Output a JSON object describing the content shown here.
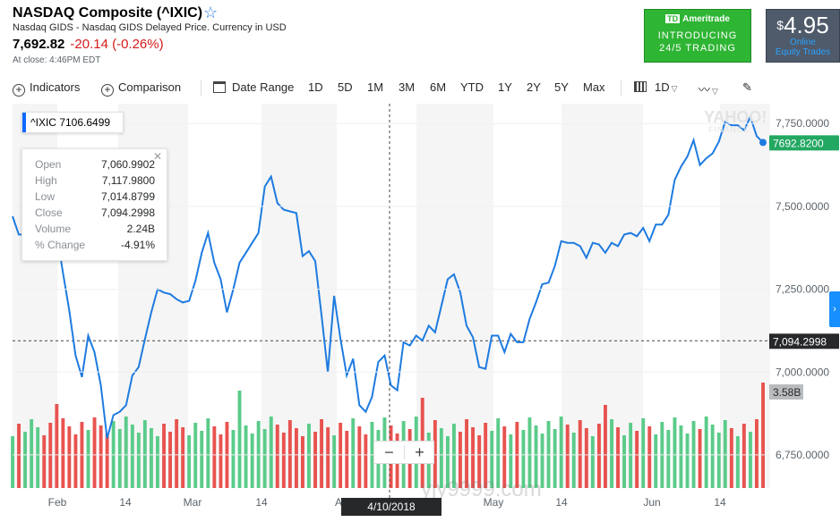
{
  "header": {
    "title": "NASDAQ Composite (^IXIC)",
    "subtitle": "Nasdaq GIDS - Nasdaq GIDS Delayed Price. Currency in USD",
    "price": "7,692.82",
    "change": "-20.14 (-0.26%)",
    "close_time": "At close: 4:46PM EDT"
  },
  "ads": {
    "td_logo": "Ameritrade",
    "td_line1": "INTRODUCING",
    "td_line2": "24/5 TRADING",
    "price_symbol": "$",
    "price_amount": "4.95",
    "price_sub1": "Online",
    "price_sub2": "Equity Trades"
  },
  "toolbar": {
    "indicators": "Indicators",
    "comparison": "Comparison",
    "date_range": "Date Range",
    "ranges": [
      "1D",
      "5D",
      "1M",
      "3M",
      "6M",
      "YTD",
      "1Y",
      "2Y",
      "5Y",
      "Max"
    ],
    "interval": "1D"
  },
  "tooltip": {
    "symbol": "^IXIC",
    "symbol_value": "7106.6499",
    "rows": [
      {
        "label": "Open",
        "value": "7,060.9902"
      },
      {
        "label": "High",
        "value": "7,117.9800"
      },
      {
        "label": "Low",
        "value": "7,014.8799"
      },
      {
        "label": "Close",
        "value": "7,094.2998"
      },
      {
        "label": "Volume",
        "value": "2.24B"
      },
      {
        "label": "% Change",
        "value": "-4.91%"
      }
    ]
  },
  "crosshair": {
    "date_label": "4/10/2018",
    "y_value": 7094.2998,
    "y_label": "7,094.2998"
  },
  "branding": {
    "yahoo": "YAHOO!",
    "finance": "FINANCE",
    "watermark": "yjy9999.com"
  },
  "colors": {
    "line": "#1e7be0",
    "current_price_bg": "#23a862",
    "volume_up": "#5bcb8a",
    "volume_down": "#e8534f",
    "crosshair_bg": "#26282a",
    "volume_label_bg": "#b9bcbf"
  },
  "chart_data": {
    "type": "line",
    "series": [
      {
        "values": [
          7470,
          7415,
          7415,
          7455,
          7505,
          7500,
          7460,
          7420,
          7300,
          7185,
          7050,
          6985,
          7110,
          7060,
          6960,
          6800,
          6870,
          6880,
          6900,
          6990,
          7015,
          7100,
          7180,
          7250,
          7240,
          7235,
          7220,
          7210,
          7215,
          7275,
          7360,
          7420,
          7330,
          7280,
          7180,
          7250,
          7330,
          7360,
          7390,
          7420,
          7560,
          7590,
          7510,
          7490,
          7485,
          7480,
          7350,
          7365,
          7335,
          7170,
          7000,
          7230,
          7100,
          6990,
          7040,
          6900,
          6880,
          6925,
          7030,
          7050,
          6960,
          6945,
          7090,
          7080,
          7110,
          7095,
          7140,
          7120,
          7200,
          7280,
          7295,
          7240,
          7140,
          7105,
          7015,
          7010,
          7110,
          7110,
          7060,
          7115,
          7090,
          7090,
          7160,
          7210,
          7265,
          7270,
          7320,
          7395,
          7390,
          7390,
          7380,
          7345,
          7390,
          7385,
          7360,
          7390,
          7380,
          7415,
          7420,
          7410,
          7435,
          7395,
          7445,
          7445,
          7475,
          7580,
          7620,
          7650,
          7700,
          7625,
          7645,
          7660,
          7695,
          7755,
          7745,
          7745,
          7730,
          7770,
          7712,
          7692.82
        ]
      }
    ],
    "volume_label": "3.58B",
    "last_price_label": "7692.8200",
    "ylim": [
      6650,
      7810
    ],
    "y_ticks": [
      6750,
      7000,
      7250,
      7500,
      7750
    ],
    "y_tick_labels": [
      "6,750.0000",
      "7,000.0000",
      "7,250.0000",
      "7,500.0000",
      "7,750.0000"
    ],
    "x_tick_labels": [
      "Feb",
      "14",
      "Mar",
      "14",
      "A",
      "May",
      "14",
      "Jun",
      "14"
    ],
    "grid": false
  }
}
